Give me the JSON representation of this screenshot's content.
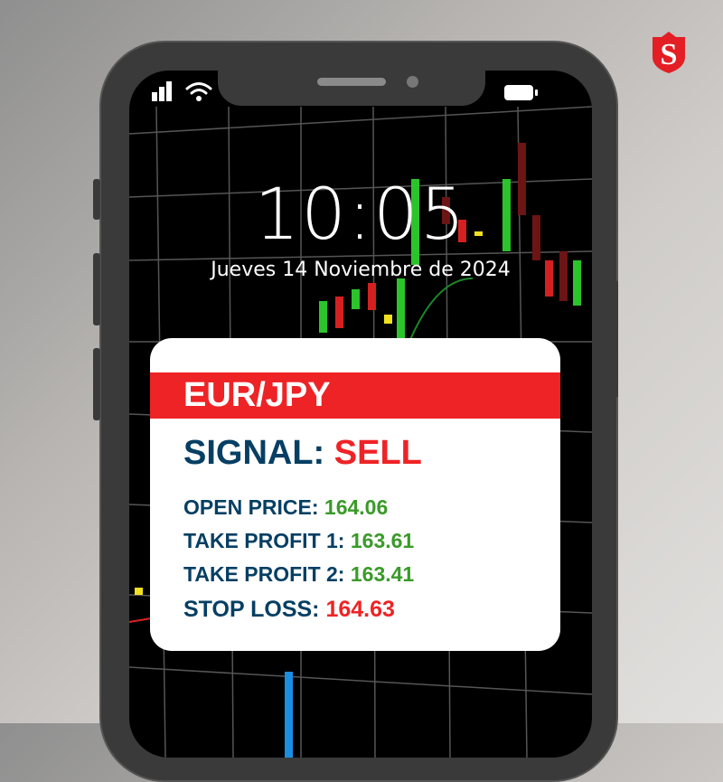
{
  "lockscreen": {
    "time": "10:05",
    "date": "Jueves 14 Noviembre de 2024"
  },
  "signal_card": {
    "pair": "EUR/JPY",
    "signal_label": "SIGNAL:",
    "signal_value": "SELL",
    "rows": [
      {
        "label": "OPEN PRICE: ",
        "value": "164.06",
        "color": "#3a9a29"
      },
      {
        "label": "TAKE PROFIT 1: ",
        "value": "163.61",
        "color": "#3a9a29"
      },
      {
        "label": "TAKE PROFIT 2: ",
        "value": "163.41",
        "color": "#3a9a29"
      },
      {
        "label": "STOP LOSS: ",
        "value": "164.63",
        "color": "#ee2326"
      }
    ]
  },
  "colors": {
    "brand_red": "#ee2326",
    "navy": "#063f63",
    "green": "#3a9a29"
  },
  "icons": [
    "signal-bars-icon",
    "wifi-icon",
    "battery-icon",
    "shield-s-logo"
  ]
}
